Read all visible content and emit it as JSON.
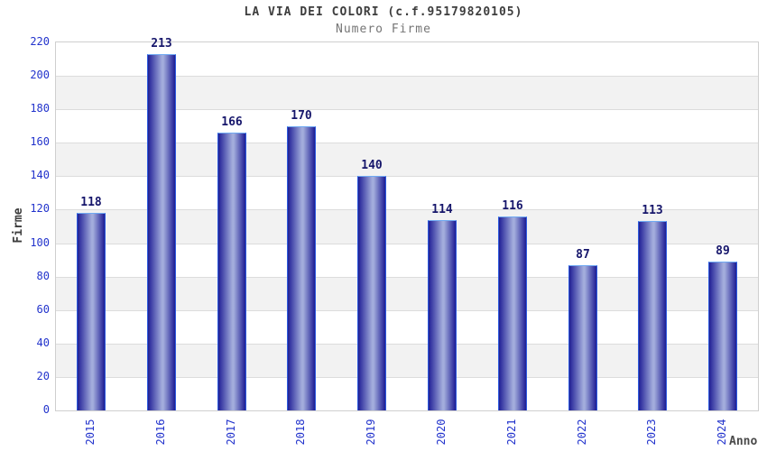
{
  "chart_data": {
    "type": "bar",
    "title": "LA VIA DEI COLORI (c.f.95179820105)",
    "subtitle": "Numero Firme",
    "xlabel": "Anno",
    "ylabel": "Firme",
    "categories": [
      "2015",
      "2016",
      "2017",
      "2018",
      "2019",
      "2020",
      "2021",
      "2022",
      "2023",
      "2024"
    ],
    "values": [
      118,
      213,
      166,
      170,
      140,
      114,
      116,
      87,
      113,
      89
    ],
    "ylim": [
      0,
      220
    ],
    "ytick_step": 20,
    "yticks": [
      0,
      20,
      40,
      60,
      80,
      100,
      120,
      140,
      160,
      180,
      200,
      220
    ],
    "grid": "horizontal-bands",
    "legend": "none",
    "colors": {
      "tick_label": "#2233cc",
      "value_label": "#16166b",
      "bar_dark": "#1f1f90",
      "bar_mid": "#30309f",
      "bar_light": "#a3addc",
      "bar_edge": "#2e5be0",
      "bar_top_border": "#6fa9f2",
      "band_gray": "#f2f2f2",
      "band_white": "#ffffff",
      "gridline": "#dcdcdc",
      "plot_border": "#cfcfcf",
      "title": "#3d3d3d",
      "subtitle": "#757575",
      "axis_label": "#4a4a4a"
    }
  }
}
